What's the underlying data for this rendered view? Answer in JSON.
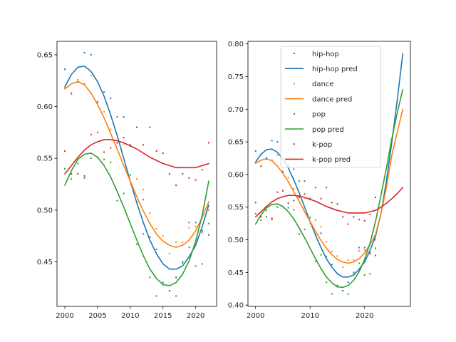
{
  "chart_data": [
    {
      "type": "scatter",
      "title": "",
      "xlabel": "",
      "ylabel": "",
      "xlim": [
        1998.8,
        2023.2
      ],
      "ylim": [
        0.407,
        0.663
      ],
      "xticks": [
        2000,
        2005,
        2010,
        2015,
        2020
      ],
      "yticks": [
        0.45,
        0.5,
        0.55,
        0.6,
        0.65
      ],
      "ytick_labels": [
        "0.45",
        "0.50",
        "0.55",
        "0.60",
        "0.65"
      ],
      "series": [
        {
          "name": "hip-hop",
          "role": "points",
          "color": "#1f77b4",
          "x": [
            2000,
            2001,
            2002,
            2003,
            2004,
            2005,
            2006,
            2007,
            2008,
            2009,
            2010,
            2011,
            2012,
            2013,
            2014,
            2015,
            2016,
            2017,
            2018,
            2019,
            2020,
            2021,
            2022
          ],
          "y": [
            0.636,
            0.613,
            0.624,
            0.652,
            0.65,
            0.604,
            0.614,
            0.608,
            0.59,
            0.59,
            0.563,
            0.508,
            0.51,
            0.474,
            0.462,
            0.43,
            0.422,
            0.435,
            0.45,
            0.488,
            0.488,
            0.48,
            0.476
          ]
        },
        {
          "name": "hip-hop pred",
          "role": "line",
          "color": "#1f77b4",
          "x": [
            2000,
            2001,
            2002,
            2003,
            2004,
            2005,
            2006,
            2007,
            2008,
            2009,
            2010,
            2011,
            2012,
            2013,
            2014,
            2015,
            2016,
            2017,
            2018,
            2019,
            2020,
            2021,
            2022
          ],
          "y": [
            0.619,
            0.631,
            0.638,
            0.639,
            0.634,
            0.624,
            0.61,
            0.592,
            0.572,
            0.55,
            0.528,
            0.507,
            0.488,
            0.471,
            0.458,
            0.448,
            0.443,
            0.443,
            0.446,
            0.455,
            0.466,
            0.484,
            0.505
          ]
        },
        {
          "name": "dance",
          "role": "points",
          "color": "#ff7f0e",
          "x": [
            2000,
            2001,
            2002,
            2003,
            2004,
            2005,
            2006,
            2007,
            2008,
            2009,
            2010,
            2011,
            2012,
            2013,
            2014,
            2015,
            2016,
            2017,
            2018,
            2019,
            2020,
            2021,
            2022
          ],
          "y": [
            0.618,
            0.612,
            0.626,
            0.622,
            0.63,
            0.605,
            0.595,
            0.578,
            0.565,
            0.564,
            0.525,
            0.53,
            0.52,
            0.497,
            0.482,
            0.475,
            0.458,
            0.469,
            0.469,
            0.483,
            0.484,
            0.478,
            0.5
          ]
        },
        {
          "name": "dance pred",
          "role": "line",
          "color": "#ff7f0e",
          "x": [
            2000,
            2001,
            2002,
            2003,
            2004,
            2005,
            2006,
            2007,
            2008,
            2009,
            2010,
            2011,
            2012,
            2013,
            2014,
            2015,
            2016,
            2017,
            2018,
            2019,
            2020,
            2021,
            2022
          ],
          "y": [
            0.617,
            0.622,
            0.624,
            0.621,
            0.613,
            0.602,
            0.589,
            0.574,
            0.559,
            0.543,
            0.528,
            0.513,
            0.499,
            0.487,
            0.477,
            0.47,
            0.466,
            0.464,
            0.466,
            0.471,
            0.48,
            0.493,
            0.508
          ]
        },
        {
          "name": "pop",
          "role": "points",
          "color": "#2ca02c",
          "x": [
            2000,
            2001,
            2002,
            2003,
            2004,
            2005,
            2006,
            2007,
            2008,
            2009,
            2010,
            2011,
            2012,
            2013,
            2014,
            2015,
            2016,
            2017,
            2018,
            2019,
            2020,
            2021,
            2022
          ],
          "y": [
            0.54,
            0.53,
            0.545,
            0.531,
            0.55,
            0.551,
            0.549,
            0.546,
            0.509,
            0.516,
            0.534,
            0.467,
            0.477,
            0.435,
            0.417,
            0.428,
            0.422,
            0.417,
            0.449,
            0.464,
            0.446,
            0.448,
            0.487
          ]
        },
        {
          "name": "pop pred",
          "role": "line",
          "color": "#2ca02c",
          "x": [
            2000,
            2001,
            2002,
            2003,
            2004,
            2005,
            2006,
            2007,
            2008,
            2009,
            2010,
            2011,
            2012,
            2013,
            2014,
            2015,
            2016,
            2017,
            2018,
            2019,
            2020,
            2021,
            2022
          ],
          "y": [
            0.524,
            0.538,
            0.549,
            0.554,
            0.555,
            0.551,
            0.543,
            0.532,
            0.518,
            0.503,
            0.487,
            0.471,
            0.456,
            0.443,
            0.434,
            0.428,
            0.427,
            0.43,
            0.438,
            0.451,
            0.47,
            0.495,
            0.528
          ]
        },
        {
          "name": "k-pop",
          "role": "points",
          "color": "#d62728",
          "x": [
            2000,
            2001,
            2002,
            2003,
            2004,
            2005,
            2006,
            2007,
            2008,
            2009,
            2010,
            2011,
            2012,
            2013,
            2014,
            2015,
            2016,
            2017,
            2018,
            2019,
            2020,
            2021,
            2022
          ],
          "y": [
            0.557,
            0.535,
            0.535,
            0.533,
            0.573,
            0.575,
            0.556,
            0.56,
            0.565,
            0.57,
            0.562,
            0.58,
            0.563,
            0.58,
            0.557,
            0.555,
            0.535,
            0.524,
            0.535,
            0.531,
            0.529,
            0.539,
            0.565
          ]
        },
        {
          "name": "k-pop pred",
          "role": "line",
          "color": "#d62728",
          "x": [
            2000,
            2001,
            2002,
            2003,
            2004,
            2005,
            2006,
            2007,
            2008,
            2009,
            2010,
            2011,
            2012,
            2013,
            2014,
            2015,
            2016,
            2017,
            2018,
            2019,
            2020,
            2021,
            2022
          ],
          "y": [
            0.535,
            0.543,
            0.551,
            0.558,
            0.563,
            0.566,
            0.568,
            0.568,
            0.567,
            0.565,
            0.562,
            0.559,
            0.555,
            0.551,
            0.548,
            0.545,
            0.543,
            0.541,
            0.541,
            0.541,
            0.541,
            0.543,
            0.545
          ]
        }
      ]
    },
    {
      "type": "scatter",
      "title": "",
      "xlabel": "",
      "ylabel": "",
      "xlim": [
        1998.6,
        2028.4
      ],
      "ylim": [
        0.398,
        0.804
      ],
      "xticks": [
        2000,
        2010,
        2020
      ],
      "yticks": [
        0.4,
        0.45,
        0.5,
        0.55,
        0.6,
        0.65,
        0.7,
        0.75,
        0.8
      ],
      "ytick_labels": [
        "0.40",
        "0.45",
        "0.50",
        "0.55",
        "0.60",
        "0.65",
        "0.70",
        "0.75",
        "0.80"
      ],
      "legend": {
        "placement": "upper center"
      },
      "series": [
        {
          "name": "hip-hop",
          "role": "points",
          "color": "#1f77b4",
          "x": [
            2000,
            2001,
            2002,
            2003,
            2004,
            2005,
            2006,
            2007,
            2008,
            2009,
            2010,
            2011,
            2012,
            2013,
            2014,
            2015,
            2016,
            2017,
            2018,
            2019,
            2020,
            2021,
            2022
          ],
          "y": [
            0.636,
            0.613,
            0.624,
            0.652,
            0.65,
            0.604,
            0.614,
            0.608,
            0.59,
            0.59,
            0.563,
            0.508,
            0.51,
            0.474,
            0.462,
            0.43,
            0.422,
            0.435,
            0.45,
            0.488,
            0.488,
            0.48,
            0.476
          ]
        },
        {
          "name": "hip-hop pred",
          "role": "line",
          "color": "#1f77b4",
          "x": [
            2000,
            2001,
            2002,
            2003,
            2004,
            2005,
            2006,
            2007,
            2008,
            2009,
            2010,
            2011,
            2012,
            2013,
            2014,
            2015,
            2016,
            2017,
            2018,
            2019,
            2020,
            2021,
            2022,
            2023,
            2024,
            2025,
            2026,
            2027
          ],
          "y": [
            0.619,
            0.631,
            0.638,
            0.639,
            0.634,
            0.624,
            0.61,
            0.592,
            0.572,
            0.55,
            0.528,
            0.507,
            0.488,
            0.471,
            0.458,
            0.448,
            0.443,
            0.443,
            0.446,
            0.455,
            0.466,
            0.484,
            0.505,
            0.54,
            0.59,
            0.65,
            0.715,
            0.785
          ]
        },
        {
          "name": "dance",
          "role": "points",
          "color": "#ff7f0e",
          "x": [
            2000,
            2001,
            2002,
            2003,
            2004,
            2005,
            2006,
            2007,
            2008,
            2009,
            2010,
            2011,
            2012,
            2013,
            2014,
            2015,
            2016,
            2017,
            2018,
            2019,
            2020,
            2021,
            2022
          ],
          "y": [
            0.618,
            0.612,
            0.626,
            0.622,
            0.63,
            0.605,
            0.595,
            0.578,
            0.565,
            0.564,
            0.525,
            0.53,
            0.52,
            0.497,
            0.482,
            0.475,
            0.458,
            0.469,
            0.469,
            0.483,
            0.484,
            0.478,
            0.5
          ]
        },
        {
          "name": "dance pred",
          "role": "line",
          "color": "#ff7f0e",
          "x": [
            2000,
            2001,
            2002,
            2003,
            2004,
            2005,
            2006,
            2007,
            2008,
            2009,
            2010,
            2011,
            2012,
            2013,
            2014,
            2015,
            2016,
            2017,
            2018,
            2019,
            2020,
            2021,
            2022,
            2023,
            2024,
            2025,
            2026,
            2027
          ],
          "y": [
            0.617,
            0.622,
            0.624,
            0.621,
            0.613,
            0.602,
            0.589,
            0.574,
            0.559,
            0.543,
            0.528,
            0.513,
            0.499,
            0.487,
            0.477,
            0.47,
            0.466,
            0.464,
            0.466,
            0.471,
            0.48,
            0.493,
            0.508,
            0.54,
            0.58,
            0.63,
            0.665,
            0.7
          ]
        },
        {
          "name": "pop",
          "role": "points",
          "color": "#2ca02c",
          "x": [
            2000,
            2001,
            2002,
            2003,
            2004,
            2005,
            2006,
            2007,
            2008,
            2009,
            2010,
            2011,
            2012,
            2013,
            2014,
            2015,
            2016,
            2017,
            2018,
            2019,
            2020,
            2021,
            2022
          ],
          "y": [
            0.54,
            0.53,
            0.545,
            0.531,
            0.55,
            0.551,
            0.549,
            0.546,
            0.509,
            0.516,
            0.534,
            0.467,
            0.477,
            0.435,
            0.417,
            0.428,
            0.422,
            0.417,
            0.449,
            0.464,
            0.446,
            0.448,
            0.487
          ]
        },
        {
          "name": "pop pred",
          "role": "line",
          "color": "#2ca02c",
          "x": [
            2000,
            2001,
            2002,
            2003,
            2004,
            2005,
            2006,
            2007,
            2008,
            2009,
            2010,
            2011,
            2012,
            2013,
            2014,
            2015,
            2016,
            2017,
            2018,
            2019,
            2020,
            2021,
            2022,
            2023,
            2024,
            2025,
            2026,
            2027
          ],
          "y": [
            0.524,
            0.538,
            0.549,
            0.554,
            0.555,
            0.551,
            0.543,
            0.532,
            0.518,
            0.503,
            0.487,
            0.471,
            0.456,
            0.443,
            0.434,
            0.428,
            0.427,
            0.43,
            0.438,
            0.451,
            0.47,
            0.495,
            0.528,
            0.568,
            0.61,
            0.655,
            0.695,
            0.73
          ]
        },
        {
          "name": "k-pop",
          "role": "points",
          "color": "#d62728",
          "x": [
            2000,
            2001,
            2002,
            2003,
            2004,
            2005,
            2006,
            2007,
            2008,
            2009,
            2010,
            2011,
            2012,
            2013,
            2014,
            2015,
            2016,
            2017,
            2018,
            2019,
            2020,
            2021,
            2022
          ],
          "y": [
            0.557,
            0.535,
            0.535,
            0.533,
            0.573,
            0.575,
            0.556,
            0.56,
            0.565,
            0.57,
            0.562,
            0.58,
            0.563,
            0.58,
            0.557,
            0.555,
            0.535,
            0.524,
            0.535,
            0.531,
            0.529,
            0.539,
            0.565
          ]
        },
        {
          "name": "k-pop pred",
          "role": "line",
          "color": "#d62728",
          "x": [
            2000,
            2001,
            2002,
            2003,
            2004,
            2005,
            2006,
            2007,
            2008,
            2009,
            2010,
            2011,
            2012,
            2013,
            2014,
            2015,
            2016,
            2017,
            2018,
            2019,
            2020,
            2021,
            2022,
            2023,
            2024,
            2025,
            2026,
            2027
          ],
          "y": [
            0.535,
            0.543,
            0.551,
            0.558,
            0.563,
            0.566,
            0.568,
            0.568,
            0.567,
            0.565,
            0.562,
            0.559,
            0.555,
            0.551,
            0.548,
            0.545,
            0.543,
            0.541,
            0.541,
            0.541,
            0.541,
            0.543,
            0.545,
            0.55,
            0.556,
            0.563,
            0.571,
            0.58
          ]
        }
      ]
    }
  ]
}
